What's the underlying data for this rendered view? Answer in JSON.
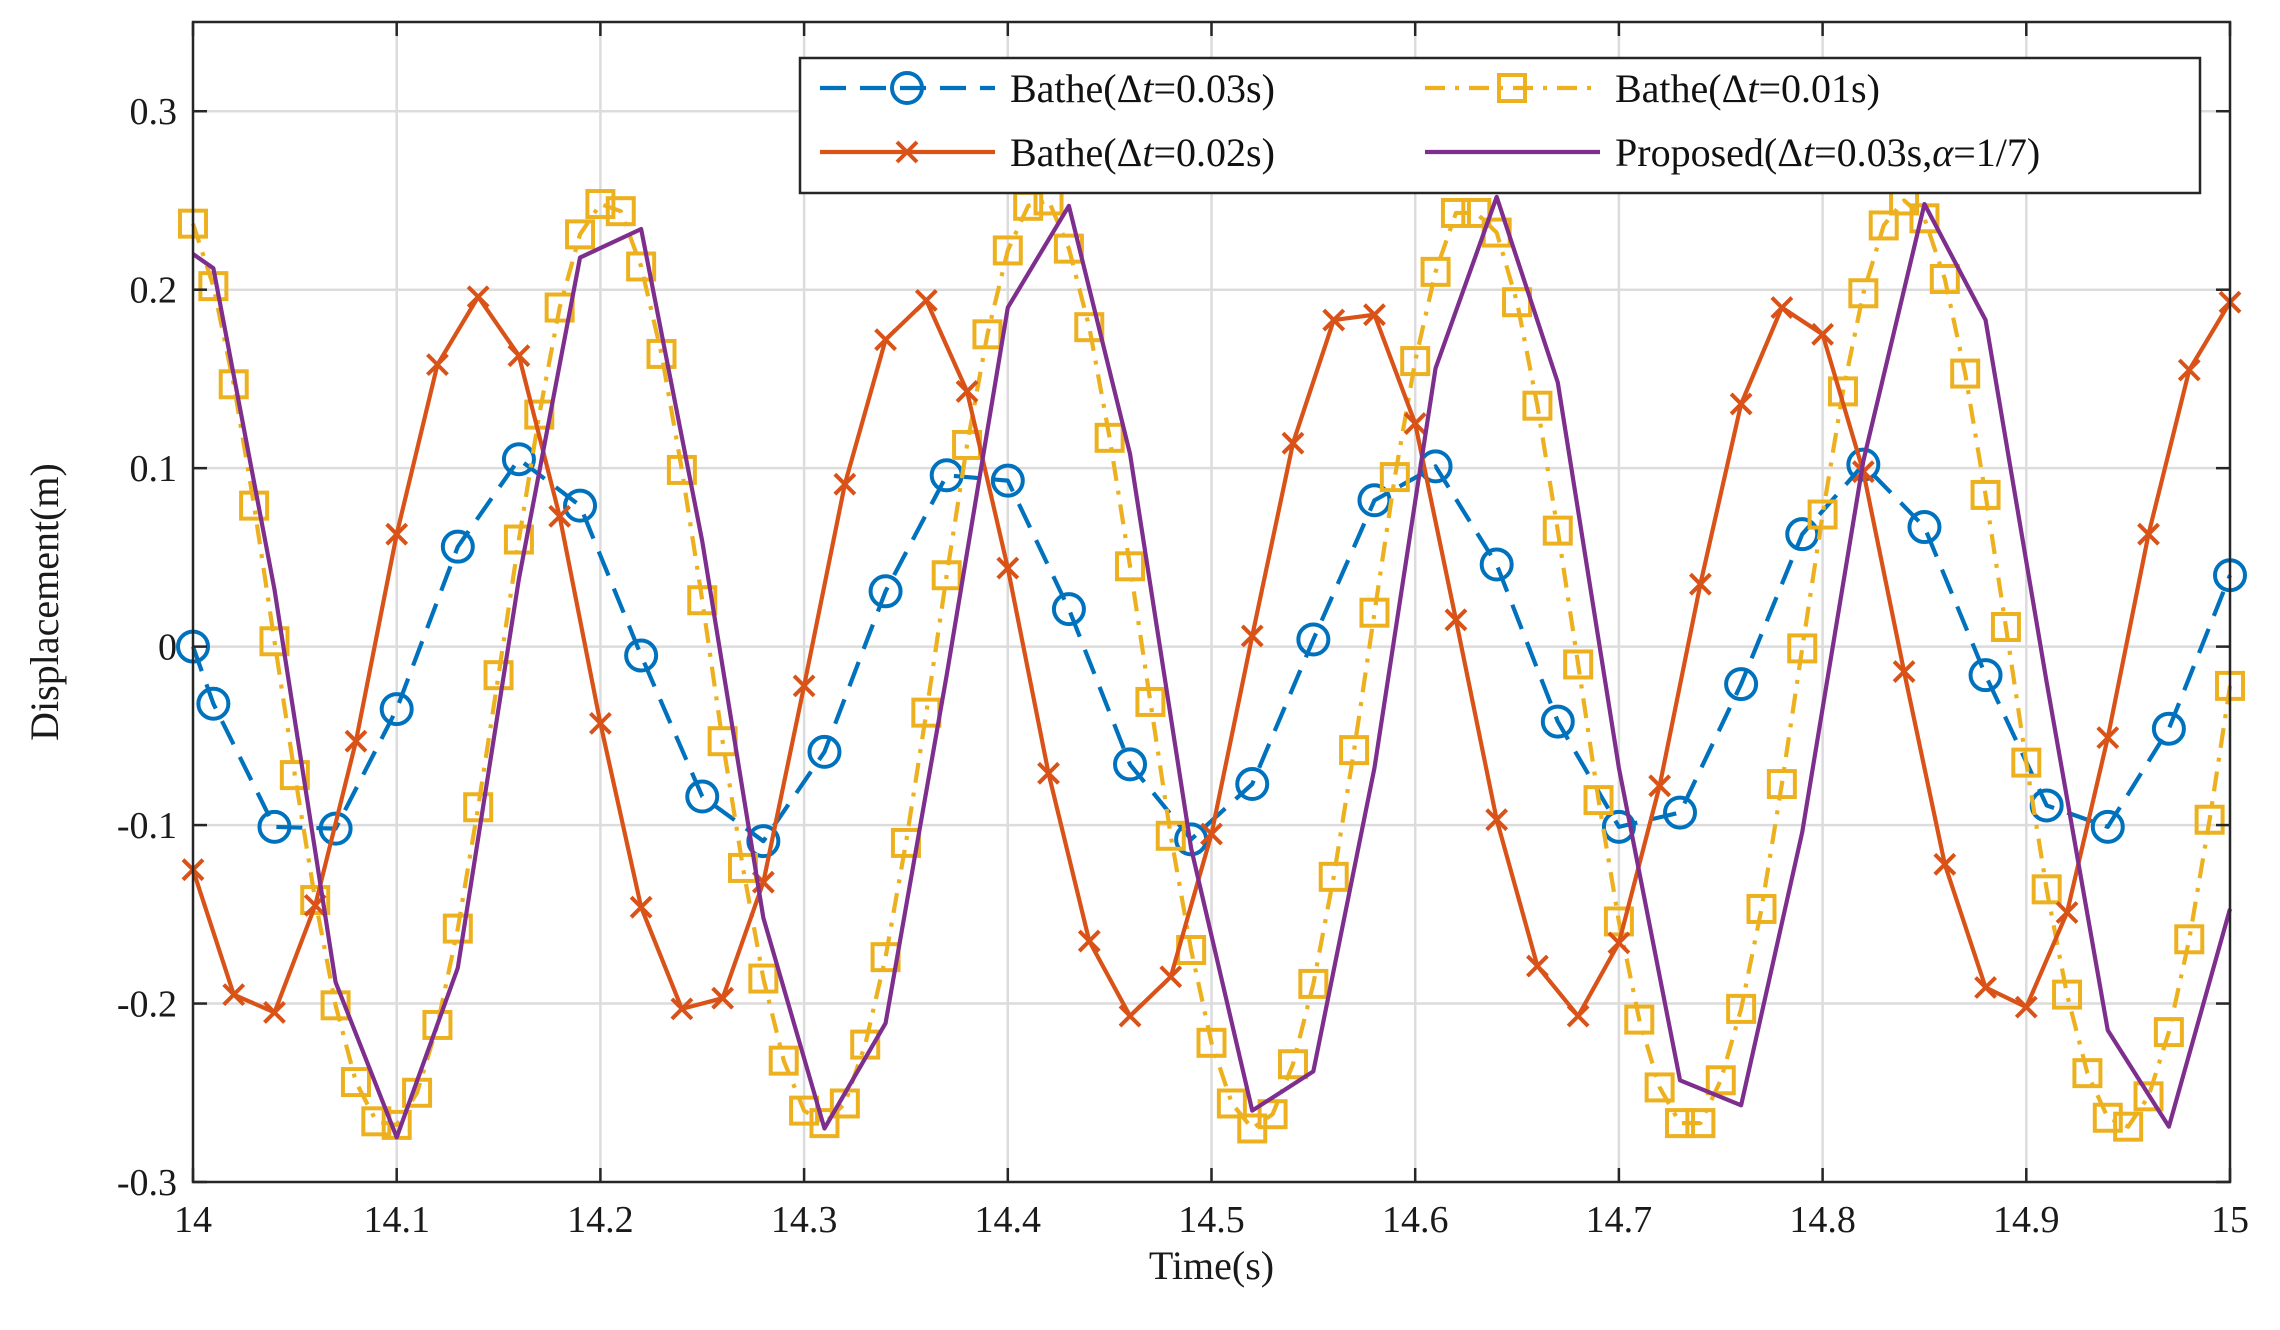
{
  "chart_data": {
    "type": "line",
    "title": "",
    "xlabel": "Time(s)",
    "ylabel": "Displacement(m)",
    "xlim": [
      14,
      15
    ],
    "ylim": [
      -0.3,
      0.35
    ],
    "xticks": [
      14,
      14.1,
      14.2,
      14.3,
      14.4,
      14.5,
      14.6,
      14.7,
      14.8,
      14.9,
      15
    ],
    "xtick_labels": [
      "14",
      "14.1",
      "14.2",
      "14.3",
      "14.4",
      "14.5",
      "14.6",
      "14.7",
      "14.8",
      "14.9",
      "15"
    ],
    "yticks": [
      -0.3,
      -0.2,
      -0.1,
      0,
      0.1,
      0.2,
      0.3
    ],
    "ytick_labels": [
      "-0.3",
      "-0.2",
      "-0.1",
      "0",
      "0.1",
      "0.2",
      "0.3"
    ],
    "grid": true,
    "legend_position": "top-right",
    "series": [
      {
        "name_prefix": "Bathe(",
        "name_symbol": "Δ",
        "name_var": "t",
        "name_suffix": "=0.03s)",
        "color": "#0072BD",
        "line_style": "dashed",
        "marker": "circle",
        "x": [
          14.0,
          14.01,
          14.04,
          14.07,
          14.1,
          14.13,
          14.16,
          14.19,
          14.22,
          14.25,
          14.28,
          14.31,
          14.34,
          14.37,
          14.4,
          14.43,
          14.46,
          14.49,
          14.52,
          14.55,
          14.58,
          14.61,
          14.64,
          14.67,
          14.7,
          14.73,
          14.76,
          14.79,
          14.82,
          14.85,
          14.88,
          14.91,
          14.94,
          14.97,
          15.0
        ],
        "y": [
          0.0,
          -0.032,
          -0.101,
          -0.102,
          -0.035,
          0.056,
          0.105,
          0.079,
          -0.005,
          -0.084,
          -0.109,
          -0.059,
          0.031,
          0.096,
          0.093,
          0.021,
          -0.066,
          -0.108,
          -0.077,
          0.004,
          0.082,
          0.101,
          0.046,
          -0.042,
          -0.101,
          -0.093,
          -0.021,
          0.063,
          0.102,
          0.067,
          -0.016,
          -0.089,
          -0.101,
          -0.046,
          0.04
        ]
      },
      {
        "name_prefix": "Bathe(",
        "name_symbol": "Δ",
        "name_var": "t",
        "name_suffix": "=0.02s)",
        "color": "#D95319",
        "line_style": "solid",
        "marker": "x",
        "x": [
          14.0,
          14.02,
          14.04,
          14.06,
          14.08,
          14.1,
          14.12,
          14.14,
          14.16,
          14.18,
          14.2,
          14.22,
          14.24,
          14.26,
          14.28,
          14.3,
          14.32,
          14.34,
          14.36,
          14.38,
          14.4,
          14.42,
          14.44,
          14.46,
          14.48,
          14.5,
          14.52,
          14.54,
          14.56,
          14.58,
          14.6,
          14.62,
          14.64,
          14.66,
          14.68,
          14.7,
          14.72,
          14.74,
          14.76,
          14.78,
          14.8,
          14.82,
          14.84,
          14.86,
          14.88,
          14.9,
          14.92,
          14.94,
          14.96,
          14.98,
          15.0
        ],
        "y": [
          -0.125,
          -0.195,
          -0.205,
          -0.145,
          -0.053,
          0.063,
          0.158,
          0.196,
          0.163,
          0.073,
          -0.043,
          -0.146,
          -0.203,
          -0.197,
          -0.132,
          -0.022,
          0.091,
          0.172,
          0.194,
          0.143,
          0.044,
          -0.071,
          -0.165,
          -0.207,
          -0.185,
          -0.105,
          0.006,
          0.114,
          0.183,
          0.186,
          0.125,
          0.015,
          -0.097,
          -0.179,
          -0.207,
          -0.166,
          -0.078,
          0.035,
          0.136,
          0.19,
          0.175,
          0.098,
          -0.014,
          -0.122,
          -0.191,
          -0.202,
          -0.149,
          -0.051,
          0.063,
          0.155,
          0.193
        ]
      },
      {
        "name_prefix": "Bathe(",
        "name_symbol": "Δ",
        "name_var": "t",
        "name_suffix": "=0.01s)",
        "color": "#EDB120",
        "line_style": "dashdot",
        "marker": "square",
        "x": [
          14.0,
          14.01,
          14.02,
          14.03,
          14.04,
          14.05,
          14.06,
          14.07,
          14.08,
          14.09,
          14.1,
          14.11,
          14.12,
          14.13,
          14.14,
          14.15,
          14.16,
          14.17,
          14.18,
          14.19,
          14.2,
          14.21,
          14.22,
          14.23,
          14.24,
          14.25,
          14.26,
          14.27,
          14.28,
          14.29,
          14.3,
          14.31,
          14.32,
          14.33,
          14.34,
          14.35,
          14.36,
          14.37,
          14.38,
          14.39,
          14.4,
          14.41,
          14.42,
          14.43,
          14.44,
          14.45,
          14.46,
          14.47,
          14.48,
          14.49,
          14.5,
          14.51,
          14.52,
          14.53,
          14.54,
          14.55,
          14.56,
          14.57,
          14.58,
          14.59,
          14.6,
          14.61,
          14.62,
          14.63,
          14.64,
          14.65,
          14.66,
          14.67,
          14.68,
          14.69,
          14.7,
          14.71,
          14.72,
          14.73,
          14.74,
          14.75,
          14.76,
          14.77,
          14.78,
          14.79,
          14.8,
          14.81,
          14.82,
          14.83,
          14.84,
          14.85,
          14.86,
          14.87,
          14.88,
          14.89,
          14.9,
          14.91,
          14.92,
          14.93,
          14.94,
          14.95,
          14.96,
          14.97,
          14.98,
          14.99,
          15.0
        ],
        "y": [
          0.237,
          0.202,
          0.147,
          0.079,
          0.003,
          -0.072,
          -0.142,
          -0.201,
          -0.244,
          -0.266,
          -0.268,
          -0.25,
          -0.212,
          -0.158,
          -0.09,
          -0.016,
          0.06,
          0.13,
          0.19,
          0.231,
          0.248,
          0.244,
          0.213,
          0.164,
          0.099,
          0.026,
          -0.053,
          -0.124,
          -0.186,
          -0.232,
          -0.26,
          -0.267,
          -0.256,
          -0.223,
          -0.174,
          -0.11,
          -0.037,
          0.04,
          0.113,
          0.175,
          0.222,
          0.247,
          0.25,
          0.223,
          0.179,
          0.117,
          0.045,
          -0.031,
          -0.106,
          -0.17,
          -0.222,
          -0.256,
          -0.27,
          -0.262,
          -0.234,
          -0.189,
          -0.129,
          -0.058,
          0.019,
          0.095,
          0.16,
          0.21,
          0.243,
          0.243,
          0.232,
          0.193,
          0.135,
          0.065,
          -0.01,
          -0.086,
          -0.154,
          -0.209,
          -0.247,
          -0.267,
          -0.267,
          -0.243,
          -0.203,
          -0.147,
          -0.077,
          -0.001,
          0.074,
          0.143,
          0.198,
          0.236,
          0.25,
          0.24,
          0.206,
          0.153,
          0.085,
          0.011,
          -0.065,
          -0.136,
          -0.195,
          -0.239,
          -0.264,
          -0.269,
          -0.252,
          -0.216,
          -0.164,
          -0.097,
          -0.022
        ]
      },
      {
        "name_prefix": "Proposed(",
        "name_symbol": "Δ",
        "name_var": "t",
        "name_mid": "=0.03s,",
        "name_var2": "α",
        "name_suffix": "=1/7)",
        "color": "#7E2F8E",
        "line_style": "solid",
        "marker": "none",
        "x": [
          14.0,
          14.01,
          14.04,
          14.07,
          14.1,
          14.13,
          14.16,
          14.19,
          14.22,
          14.25,
          14.28,
          14.31,
          14.34,
          14.37,
          14.4,
          14.43,
          14.46,
          14.49,
          14.52,
          14.55,
          14.58,
          14.61,
          14.64,
          14.67,
          14.7,
          14.73,
          14.76,
          14.79,
          14.82,
          14.85,
          14.88,
          14.91,
          14.94,
          14.97,
          15.0
        ],
        "y": [
          0.22,
          0.212,
          0.032,
          -0.188,
          -0.275,
          -0.18,
          0.038,
          0.218,
          0.234,
          0.059,
          -0.152,
          -0.27,
          -0.211,
          -0.016,
          0.19,
          0.247,
          0.108,
          -0.113,
          -0.26,
          -0.238,
          -0.068,
          0.156,
          0.252,
          0.148,
          -0.068,
          -0.243,
          -0.257,
          -0.104,
          0.104,
          0.248,
          0.183,
          -0.02,
          -0.215,
          -0.269,
          -0.147
        ]
      }
    ]
  }
}
